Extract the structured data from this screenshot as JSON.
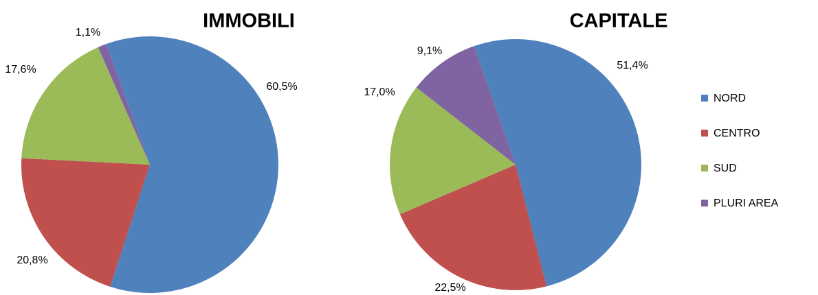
{
  "chart_data": [
    {
      "type": "pie",
      "title": "IMMOBILI",
      "categories": [
        "NORD",
        "CENTRO",
        "SUD",
        "PLURI AREA"
      ],
      "values": [
        60.5,
        20.8,
        17.6,
        1.1
      ],
      "value_labels": [
        "60,5%",
        "20,8%",
        "17,6%",
        "1,1%"
      ],
      "colors": [
        "#4f81bd",
        "#c0504d",
        "#9bbb59",
        "#8064a2"
      ],
      "legend": "right"
    },
    {
      "type": "pie",
      "title": "CAPITALE",
      "categories": [
        "NORD",
        "CENTRO",
        "SUD",
        "PLURI AREA"
      ],
      "values": [
        51.4,
        22.5,
        17.0,
        9.1
      ],
      "value_labels": [
        "51,4%",
        "22,5%",
        "17,0%",
        "9,1%"
      ],
      "colors": [
        "#4f81bd",
        "#c0504d",
        "#9bbb59",
        "#8064a2"
      ],
      "legend": "right"
    }
  ]
}
